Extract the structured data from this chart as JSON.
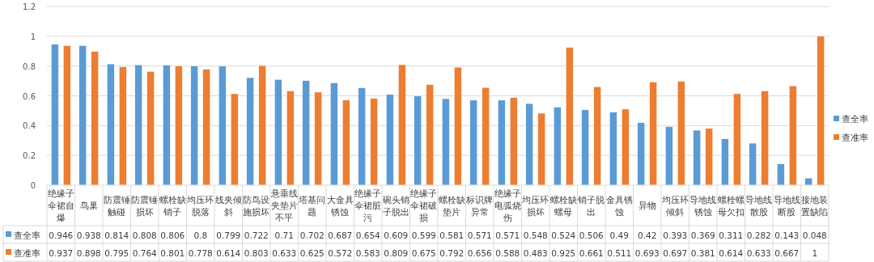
{
  "chart_data": {
    "type": "bar",
    "categories": [
      "绝缘子伞裙自爆",
      "鸟巢",
      "防震锤触碰",
      "防震锤损坏",
      "螺栓缺销子",
      "均压环脱落",
      "线夹倾斜",
      "防鸟设施损坏",
      "悬垂线夹垫片不平",
      "塔基问题",
      "大金具锈蚀",
      "绝缘子伞裙脏污",
      "碗头销子脱出",
      "绝缘子伞裙破损",
      "螺栓缺垫片",
      "标识牌异常",
      "绝缘子电弧烧伤",
      "均压环损坏",
      "螺栓缺螺母",
      "销子脱出",
      "金具锈蚀",
      "异物",
      "均压环倾斜",
      "导地线锈蚀",
      "螺栓螺母欠扣",
      "导地线散股",
      "导地线断股",
      "接地装置缺陷"
    ],
    "series": [
      {
        "name": "查全率",
        "color": "#5b9bd5",
        "values": [
          0.946,
          0.938,
          0.814,
          0.808,
          0.806,
          0.8,
          0.799,
          0.722,
          0.71,
          0.702,
          0.687,
          0.654,
          0.609,
          0.599,
          0.581,
          0.571,
          0.571,
          0.548,
          0.524,
          0.506,
          0.49,
          0.42,
          0.393,
          0.369,
          0.311,
          0.282,
          0.143,
          0.048
        ]
      },
      {
        "name": "查准率",
        "color": "#ed7d31",
        "values": [
          0.937,
          0.898,
          0.795,
          0.764,
          0.801,
          0.778,
          0.614,
          0.803,
          0.633,
          0.625,
          0.572,
          0.583,
          0.809,
          0.675,
          0.792,
          0.656,
          0.588,
          0.483,
          0.925,
          0.661,
          0.511,
          0.693,
          0.697,
          0.381,
          0.614,
          0.633,
          0.667,
          1
        ]
      }
    ],
    "ylim": [
      0,
      1.2
    ],
    "yticks": [
      0,
      0.2,
      0.4,
      0.6,
      0.8,
      1,
      1.2
    ],
    "grid": "y",
    "legend": "right",
    "data_labels": true
  }
}
